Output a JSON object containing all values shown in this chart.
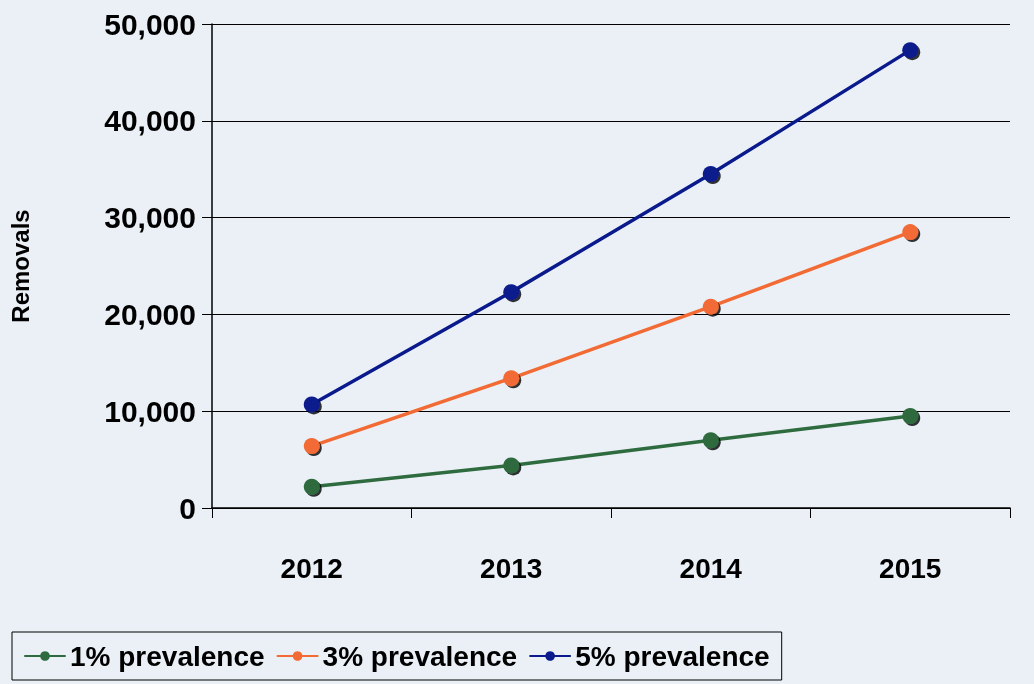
{
  "chart_data": {
    "type": "line",
    "ylabel": "Removals",
    "categories": [
      "2012",
      "2013",
      "2014",
      "2015"
    ],
    "series": [
      {
        "name": "1% prevalence",
        "color": "#2e6b3e",
        "values": [
          2200,
          4400,
          7000,
          9500
        ]
      },
      {
        "name": "3% prevalence",
        "color": "#f26b35",
        "values": [
          6400,
          13400,
          20800,
          28500
        ]
      },
      {
        "name": "5% prevalence",
        "color": "#0a1a8c",
        "values": [
          10700,
          22300,
          34500,
          47300
        ]
      }
    ],
    "ylim": [
      0,
      50000
    ],
    "yticks": [
      0,
      {
        "value": 10000,
        "label": "10,000"
      },
      {
        "value": 20000,
        "label": "20,000"
      },
      {
        "value": 30000,
        "label": "30,000"
      },
      {
        "value": 40000,
        "label": "40,000"
      },
      {
        "value": 50000,
        "label": "50,000"
      }
    ],
    "grid": "y",
    "legend": "bottom",
    "marker": "circle",
    "line_style": "solid"
  }
}
